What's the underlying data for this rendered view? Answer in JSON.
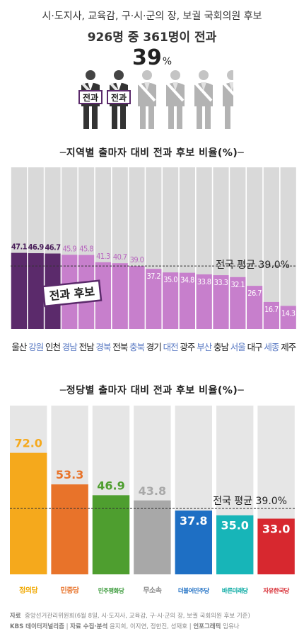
{
  "header": {
    "subtitle": "시·도지사, 교육감, 구·시·군의 장, 보궐 국회의원 후보",
    "main": "926명 중 361명이 전과",
    "percent_value": "39",
    "percent_unit": "%",
    "badge_label": "전과",
    "people_total": 6,
    "people_highlighted": 2
  },
  "chart_data": [
    {
      "type": "bar",
      "title": "─지역별 출마자 대비 전과 후보 비율(%)─",
      "categories": [
        "울산",
        "강원",
        "인천",
        "경남",
        "전남",
        "경북",
        "전북",
        "충북",
        "경기",
        "대전",
        "광주",
        "부산",
        "충남",
        "서울",
        "대구",
        "세종",
        "제주"
      ],
      "category_colors": [
        "#222222",
        "#5b7bc4",
        "#222222",
        "#5b7bc4",
        "#222222",
        "#5b7bc4",
        "#222222",
        "#5b7bc4",
        "#222222",
        "#5b7bc4",
        "#222222",
        "#5b7bc4",
        "#222222",
        "#5b7bc4",
        "#222222",
        "#5b7bc4",
        "#222222"
      ],
      "values": [
        47.1,
        46.9,
        46.7,
        45.9,
        45.8,
        41.3,
        40.7,
        39.0,
        37.2,
        35.0,
        34.8,
        33.8,
        33.3,
        32.1,
        26.7,
        16.7,
        14.3
      ],
      "value_labels": [
        "47.1",
        "46.9",
        "46.7",
        "45.9",
        "45.8",
        "41.3",
        "40.7",
        "39.0",
        "37.2",
        "35.0",
        "34.8",
        "33.8",
        "33.3",
        "32.1",
        "26.7",
        "16.7",
        "14.3"
      ],
      "bar_colors": [
        "#5b2a6b",
        "#5b2a6b",
        "#5b2a6b",
        "#c77fcc",
        "#c77fcc",
        "#c77fcc",
        "#c77fcc",
        "#c77fcc",
        "#c77fcc",
        "#c77fcc",
        "#c77fcc",
        "#c77fcc",
        "#c77fcc",
        "#c77fcc",
        "#c77fcc",
        "#c77fcc",
        "#c77fcc"
      ],
      "background_color": "#d9d9d9",
      "average_value": 39.0,
      "average_label": "전국 평균 39.0%",
      "badge_label": "전과 후보",
      "ylim": [
        0,
        100
      ]
    },
    {
      "type": "bar",
      "title": "─정당별 출마자 대비 전과 후보 비율(%)─",
      "categories": [
        "정의당",
        "민중당",
        "민주평화당",
        "무소속",
        "더불어민주당",
        "바른미래당",
        "자유한국당"
      ],
      "values": [
        72.0,
        53.3,
        46.9,
        43.8,
        37.8,
        35.0,
        33.0
      ],
      "value_labels": [
        "72.0",
        "53.3",
        "46.9",
        "43.8",
        "37.8",
        "35.0",
        "33.0"
      ],
      "bar_colors": [
        "#f5a91c",
        "#e8732a",
        "#4e9e2f",
        "#a8a8a8",
        "#1e6fc4",
        "#17b5b8",
        "#d7282f"
      ],
      "label_colors": [
        "#f5a91c",
        "#e8732a",
        "#4e9e2f",
        "#a8a8a8",
        "#ffffff",
        "#ffffff",
        "#ffffff"
      ],
      "logo_colors": [
        "#f0a800",
        "#e8732a",
        "#3a9a3a",
        "#888888",
        "#1e6fc4",
        "#00a7a0",
        "#d7282f"
      ],
      "background_color": "#e6e6e6",
      "average_value": 39.0,
      "average_label": "전국 평균 39.0%",
      "ylim": [
        0,
        100
      ]
    }
  ],
  "source": {
    "line1_label": "자료",
    "line1_text": "중앙선거관리위원회(6월 8일, 시·도지사, 교육감, 구·시·군의 장, 보궐 국회의원 후보 기준)",
    "line2_org": "KBS 데이터저널리즘",
    "line2_collect_label": "자료 수집·분석",
    "line2_collect": "윤지희, 이지연, 정한진, 성재호",
    "line2_info_label": "인포그래픽",
    "line2_info": "임유나"
  }
}
